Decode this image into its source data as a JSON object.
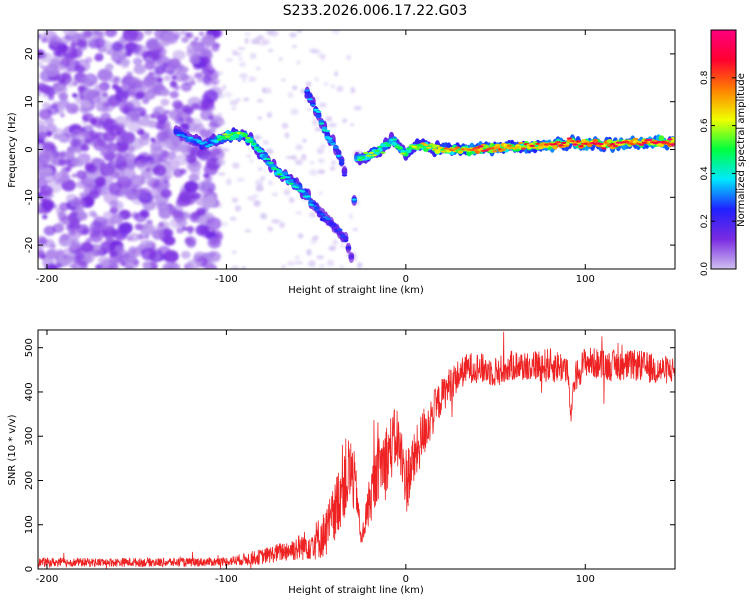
{
  "figure": {
    "title": "S233.2026.006.17.22.G03"
  },
  "chart_data": [
    {
      "type": "heatmap",
      "name": "spectrogram",
      "title": "S233.2026.006.17.22.G03",
      "xlabel": "Height of straight line (km)",
      "ylabel": "Frequency (Hz)",
      "xlim": [
        -205,
        150
      ],
      "ylim": [
        -25,
        25
      ],
      "x_ticks": [
        -200,
        -100,
        0,
        100
      ],
      "y_ticks": [
        -20,
        -10,
        0,
        10,
        20
      ],
      "colorbar": {
        "label": "Normalized spectral amplitude",
        "range": [
          0,
          1
        ],
        "ticks": [
          0.0,
          0.2,
          0.4,
          0.6,
          0.8
        ],
        "colors": [
          "#d0c0f0",
          "#7a2be2",
          "#2020ff",
          "#00e8ff",
          "#00ff40",
          "#f0ff00",
          "#ff8000",
          "#ff0030",
          "#ff0080"
        ]
      },
      "ridge": [
        {
          "x": -128,
          "f": 3.5,
          "a": 0.3
        },
        {
          "x": -118,
          "f": 2.0,
          "a": 0.35
        },
        {
          "x": -110,
          "f": 1.0,
          "a": 0.35
        },
        {
          "x": -100,
          "f": 3.0,
          "a": 0.55
        },
        {
          "x": -90,
          "f": 3.0,
          "a": 0.55
        },
        {
          "x": -84,
          "f": 1.0,
          "a": 0.45
        },
        {
          "x": -78,
          "f": -2.0,
          "a": 0.45
        },
        {
          "x": -70,
          "f": -5.0,
          "a": 0.45
        },
        {
          "x": -62,
          "f": -7.0,
          "a": 0.4
        },
        {
          "x": -55,
          "f": -10.0,
          "a": 0.35
        },
        {
          "x": -48,
          "f": -13.0,
          "a": 0.3
        },
        {
          "x": -40,
          "f": -16.0,
          "a": 0.25
        },
        {
          "x": -33,
          "f": -19.0,
          "a": 0.25
        },
        {
          "x": -30,
          "f": -23.0,
          "a": 0.2
        },
        {
          "x": -28,
          "f": -2.0,
          "a": 0.4
        },
        {
          "x": -22,
          "f": -1.5,
          "a": 0.55
        },
        {
          "x": -14,
          "f": 0.0,
          "a": 0.5
        },
        {
          "x": -8,
          "f": 2.0,
          "a": 0.45
        },
        {
          "x": 0,
          "f": -1.0,
          "a": 0.55
        },
        {
          "x": 6,
          "f": 1.0,
          "a": 0.6
        },
        {
          "x": 20,
          "f": 0.0,
          "a": 0.7
        },
        {
          "x": 40,
          "f": 0.0,
          "a": 0.85
        },
        {
          "x": 60,
          "f": 0.5,
          "a": 0.75
        },
        {
          "x": 80,
          "f": 1.0,
          "a": 0.8
        },
        {
          "x": 95,
          "f": 1.5,
          "a": 0.85
        },
        {
          "x": 110,
          "f": 1.0,
          "a": 0.85
        },
        {
          "x": 130,
          "f": 1.5,
          "a": 0.85
        },
        {
          "x": 150,
          "f": 1.5,
          "a": 0.9
        }
      ],
      "upper_branch": [
        {
          "x": -55,
          "f": 12.0,
          "a": 0.3
        },
        {
          "x": -50,
          "f": 8.0,
          "a": 0.35
        },
        {
          "x": -45,
          "f": 4.0,
          "a": 0.4
        },
        {
          "x": -40,
          "f": 1.0,
          "a": 0.35
        },
        {
          "x": -36,
          "f": -2.0,
          "a": 0.3
        },
        {
          "x": -33,
          "f": -7.0,
          "a": 0.25
        }
      ]
    },
    {
      "type": "line",
      "name": "snr",
      "xlabel": "Height of straight line (km)",
      "ylabel": "SNR (10 * v/v)",
      "xlim": [
        -205,
        150
      ],
      "ylim": [
        0,
        540
      ],
      "x_ticks": [
        -200,
        -100,
        0,
        100
      ],
      "y_ticks": [
        0,
        100,
        200,
        300,
        400,
        500
      ],
      "color": "#ee2222",
      "x": [
        -205,
        -180,
        -150,
        -120,
        -100,
        -90,
        -80,
        -70,
        -60,
        -55,
        -50,
        -45,
        -40,
        -35,
        -30,
        -27,
        -25,
        -20,
        -15,
        -10,
        -5,
        0,
        5,
        10,
        15,
        20,
        25,
        30,
        35,
        40,
        50,
        60,
        70,
        80,
        90,
        92,
        94,
        100,
        110,
        120,
        130,
        140,
        150
      ],
      "y": [
        15,
        15,
        15,
        15,
        17,
        22,
        28,
        38,
        48,
        55,
        65,
        80,
        120,
        200,
        220,
        160,
        60,
        160,
        230,
        260,
        300,
        200,
        250,
        310,
        350,
        390,
        420,
        440,
        455,
        455,
        445,
        460,
        460,
        460,
        455,
        340,
        430,
        470,
        460,
        460,
        460,
        450,
        450
      ],
      "noise": [
        10,
        10,
        10,
        10,
        10,
        14,
        18,
        22,
        30,
        35,
        45,
        55,
        70,
        90,
        90,
        40,
        15,
        60,
        70,
        80,
        70,
        80,
        60,
        60,
        50,
        40,
        40,
        35,
        35,
        35,
        35,
        35,
        35,
        40,
        35,
        15,
        35,
        35,
        35,
        35,
        35,
        35,
        30
      ]
    }
  ]
}
